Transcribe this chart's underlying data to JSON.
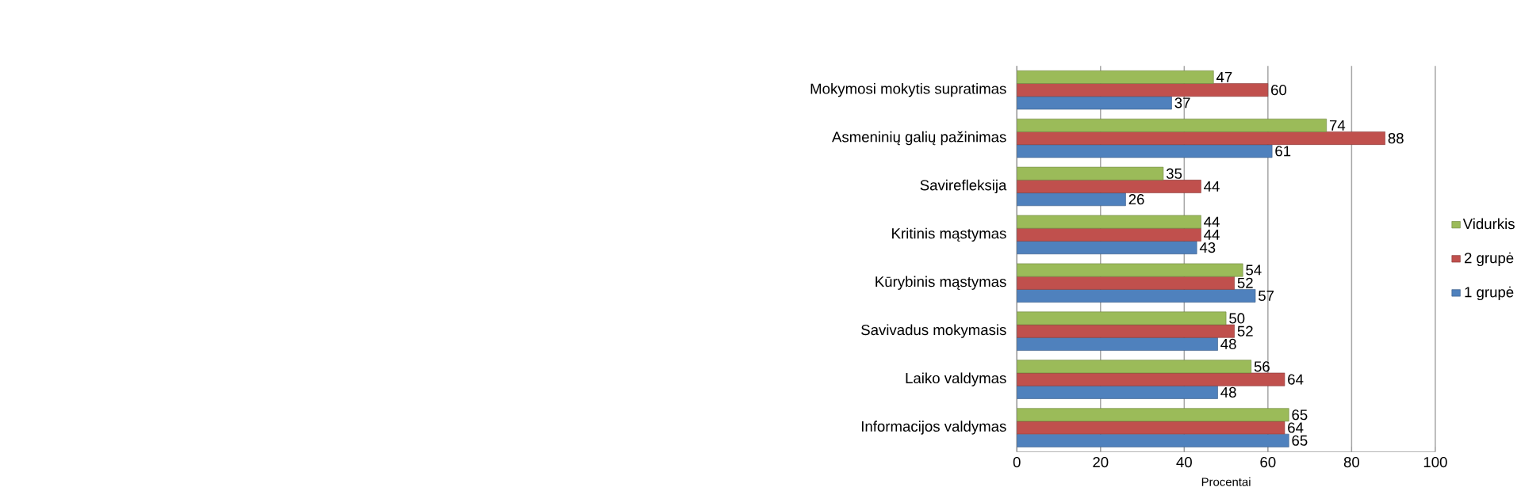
{
  "chart_data": {
    "type": "bar",
    "orientation": "horizontal",
    "xlabel": "Procentai",
    "categories": [
      "Mokymosi mokytis supratimas",
      "Asmeninių galių pažinimas",
      "Savirefleksija",
      "Kritinis mąstymas",
      "Kūrybinis mąstymas",
      "Savivadus mokymasis",
      "Laiko valdymas",
      "Informacijos valdymas"
    ],
    "series": [
      {
        "name": "1 grupė",
        "color": "#4f81bd",
        "values": [
          37,
          61,
          26,
          43,
          57,
          48,
          48,
          65
        ]
      },
      {
        "name": "2 grupė",
        "color": "#c0504d",
        "values": [
          60,
          88,
          44,
          44,
          52,
          52,
          64,
          64
        ]
      },
      {
        "name": "Vidurkis",
        "color": "#9bbb59",
        "values": [
          47,
          74,
          35,
          44,
          54,
          50,
          56,
          65
        ]
      }
    ],
    "xlim": [
      0,
      100
    ],
    "xticks": [
      0,
      20,
      40,
      60,
      80,
      100
    ],
    "grid": "x",
    "legend": "right",
    "data_labels": true
  }
}
